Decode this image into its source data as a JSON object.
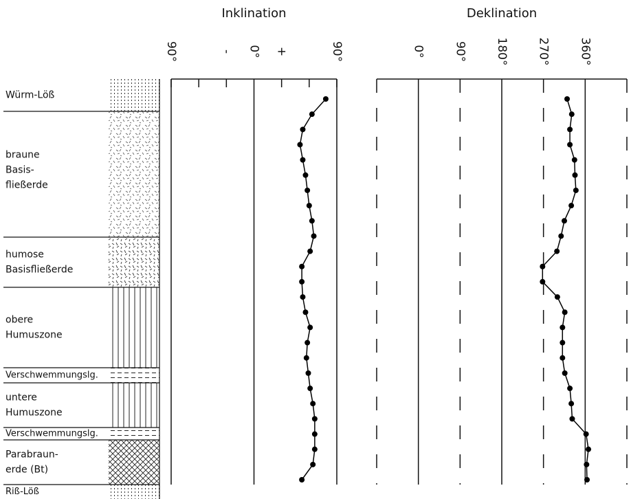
{
  "layers": [
    {
      "lines": [
        "Würm-Löß"
      ]
    },
    {
      "lines": [
        "braune",
        "Basis-",
        "fließerde"
      ]
    },
    {
      "lines": [
        "humose",
        "Basisfließerde"
      ]
    },
    {
      "lines": [
        "obere",
        "Humuszone"
      ]
    },
    {
      "lines": [
        "Verschwemmungslg."
      ]
    },
    {
      "lines": [
        "untere",
        "Humuszone"
      ]
    },
    {
      "lines": [
        "Verschwemmungslg."
      ]
    },
    {
      "lines": [
        "Parabraun-",
        "erde (Bt)"
      ]
    },
    {
      "lines": [
        "Riß-Löß"
      ]
    }
  ],
  "chart_data": [
    {
      "type": "line",
      "title": "Inklination",
      "color": "#000000",
      "grid": false,
      "categories": [
        null,
        null,
        null,
        null,
        null,
        null,
        null,
        null,
        null,
        null,
        null,
        null,
        null,
        null,
        null,
        null,
        null,
        null,
        null,
        null,
        null,
        null,
        null,
        null,
        null,
        null
      ],
      "values": [
        78,
        63,
        53,
        50,
        53,
        56,
        58,
        60,
        63,
        65,
        61,
        52,
        52,
        53,
        56,
        61,
        58,
        57,
        59,
        61,
        64,
        66,
        66,
        66,
        64,
        52
      ],
      "xlim": [
        -90,
        90
      ],
      "xticks": [
        {
          "value": -90,
          "label": "90°"
        },
        {
          "value": -30,
          "label": "-"
        },
        {
          "value": 0,
          "label": "0°"
        },
        {
          "value": 30,
          "label": "+"
        },
        {
          "value": 90,
          "label": "90°"
        }
      ],
      "minor_xticks": [
        -60,
        60
      ]
    },
    {
      "type": "line",
      "title": "Deklination",
      "color": "#000000",
      "grid": true,
      "categories": [
        null,
        null,
        null,
        null,
        null,
        null,
        null,
        null,
        null,
        null,
        null,
        null,
        null,
        null,
        null,
        null,
        null,
        null,
        null,
        null,
        null,
        null,
        null,
        null,
        null,
        null
      ],
      "values": [
        321,
        331,
        327,
        327,
        337,
        338,
        340,
        330,
        315,
        308,
        299,
        268,
        268,
        300,
        316,
        311,
        311,
        311,
        316,
        327,
        330,
        332,
        362,
        367,
        363,
        364
      ],
      "xlim": [
        -90,
        450
      ],
      "xticks": [
        {
          "value": 0,
          "label": "0°"
        },
        {
          "value": 90,
          "label": "90°"
        },
        {
          "value": 180,
          "label": "180°"
        },
        {
          "value": 270,
          "label": "270°"
        },
        {
          "value": 360,
          "label": "360°"
        }
      ],
      "minor_xticks": [
        -90,
        450
      ]
    }
  ]
}
